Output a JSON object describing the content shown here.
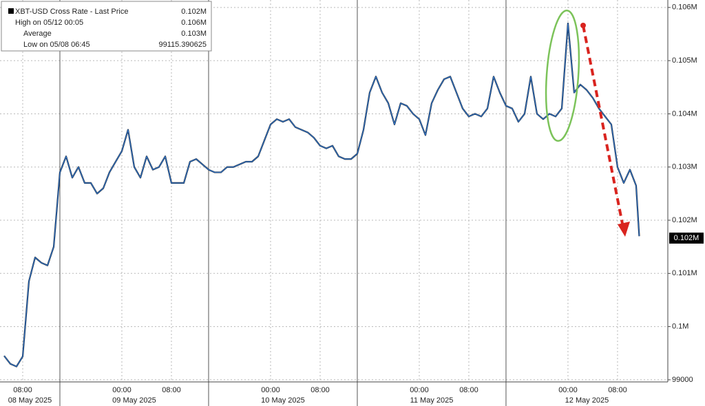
{
  "chart_data": {
    "type": "line",
    "legend": {
      "title": "XBT-USD Cross Rate - Last Price",
      "last": "0.102M",
      "stats": [
        {
          "label": "High on 05/12 00:05",
          "value": "0.106M"
        },
        {
          "label": "Average",
          "value": "0.103M"
        },
        {
          "label": "Low on 05/08 06:45",
          "value": "99115.390625"
        }
      ]
    },
    "x": [
      "2025-05-08T05:00",
      "2025-05-08T06:00",
      "2025-05-08T07:00",
      "2025-05-08T08:00",
      "2025-05-08T09:00",
      "2025-05-08T10:00",
      "2025-05-08T11:00",
      "2025-05-08T12:00",
      "2025-05-08T13:00",
      "2025-05-08T14:00",
      "2025-05-08T15:00",
      "2025-05-08T16:00",
      "2025-05-08T17:00",
      "2025-05-08T18:00",
      "2025-05-08T19:00",
      "2025-05-08T20:00",
      "2025-05-08T21:00",
      "2025-05-08T22:00",
      "2025-05-08T23:00",
      "2025-05-09T00:00",
      "2025-05-09T01:00",
      "2025-05-09T02:00",
      "2025-05-09T03:00",
      "2025-05-09T04:00",
      "2025-05-09T05:00",
      "2025-05-09T06:00",
      "2025-05-09T07:00",
      "2025-05-09T08:00",
      "2025-05-09T09:00",
      "2025-05-09T10:00",
      "2025-05-09T11:00",
      "2025-05-09T12:00",
      "2025-05-09T13:00",
      "2025-05-09T14:00",
      "2025-05-09T15:00",
      "2025-05-09T16:00",
      "2025-05-09T17:00",
      "2025-05-09T18:00",
      "2025-05-09T19:00",
      "2025-05-09T20:00",
      "2025-05-09T21:00",
      "2025-05-09T22:00",
      "2025-05-09T23:00",
      "2025-05-10T00:00",
      "2025-05-10T01:00",
      "2025-05-10T02:00",
      "2025-05-10T03:00",
      "2025-05-10T04:00",
      "2025-05-10T05:00",
      "2025-05-10T06:00",
      "2025-05-10T07:00",
      "2025-05-10T08:00",
      "2025-05-10T09:00",
      "2025-05-10T10:00",
      "2025-05-10T11:00",
      "2025-05-10T12:00",
      "2025-05-10T13:00",
      "2025-05-10T14:00",
      "2025-05-10T15:00",
      "2025-05-10T16:00",
      "2025-05-10T17:00",
      "2025-05-10T18:00",
      "2025-05-10T19:00",
      "2025-05-10T20:00",
      "2025-05-10T21:00",
      "2025-05-10T22:00",
      "2025-05-10T23:00",
      "2025-05-11T00:00",
      "2025-05-11T01:00",
      "2025-05-11T02:00",
      "2025-05-11T03:00",
      "2025-05-11T04:00",
      "2025-05-11T05:00",
      "2025-05-11T06:00",
      "2025-05-11T07:00",
      "2025-05-11T08:00",
      "2025-05-11T09:00",
      "2025-05-11T10:00",
      "2025-05-11T11:00",
      "2025-05-11T12:00",
      "2025-05-11T13:00",
      "2025-05-11T14:00",
      "2025-05-11T15:00",
      "2025-05-11T16:00",
      "2025-05-11T17:00",
      "2025-05-11T18:00",
      "2025-05-11T19:00",
      "2025-05-11T20:00",
      "2025-05-11T21:00",
      "2025-05-11T22:00",
      "2025-05-11T23:00",
      "2025-05-12T00:00",
      "2025-05-12T01:00",
      "2025-05-12T02:00",
      "2025-05-12T03:00",
      "2025-05-12T04:00",
      "2025-05-12T05:00",
      "2025-05-12T06:00",
      "2025-05-12T07:00",
      "2025-05-12T08:00",
      "2025-05-12T09:00",
      "2025-05-12T10:00",
      "2025-05-12T11:00",
      "2025-05-12T11:30"
    ],
    "series": [
      {
        "name": "XBT-USD Cross Rate - Last Price",
        "color": "#2f6fc0",
        "values": [
          99450,
          99300,
          99250,
          99440,
          100850,
          101300,
          101200,
          101150,
          101500,
          102900,
          103200,
          102800,
          103000,
          102700,
          102700,
          102500,
          102600,
          102900,
          103100,
          103300,
          103700,
          103000,
          102800,
          103200,
          102950,
          103000,
          103200,
          102700,
          102700,
          102700,
          103100,
          103150,
          103050,
          102950,
          102900,
          102900,
          103000,
          103000,
          103050,
          103100,
          103100,
          103200,
          103500,
          103800,
          103900,
          103850,
          103900,
          103750,
          103700,
          103650,
          103550,
          103400,
          103350,
          103400,
          103200,
          103150,
          103150,
          103250,
          103700,
          104400,
          104700,
          104400,
          104200,
          103800,
          104200,
          104150,
          104000,
          103900,
          103600,
          104200,
          104450,
          104650,
          104700,
          104400,
          104100,
          103950,
          104000,
          103950,
          104100,
          104700,
          104400,
          104150,
          104100,
          103850,
          104000,
          104700,
          104000,
          103900,
          104000,
          103950,
          104100,
          105700,
          104400,
          104550,
          104450,
          104300,
          104100,
          103950,
          103800,
          103000,
          102700,
          102950,
          102650,
          101700
        ]
      }
    ],
    "xlim": [
      "2025-05-08T04:20",
      "2025-05-12T16:07"
    ],
    "xticks": [
      {
        "value": "2025-05-08T08:00",
        "label": "08:00"
      },
      {
        "value": "2025-05-09T00:00",
        "label": "00:00"
      },
      {
        "value": "2025-05-09T08:00",
        "label": "08:00"
      },
      {
        "value": "2025-05-10T00:00",
        "label": "00:00"
      },
      {
        "value": "2025-05-10T08:00",
        "label": "08:00"
      },
      {
        "value": "2025-05-11T00:00",
        "label": "00:00"
      },
      {
        "value": "2025-05-11T08:00",
        "label": "08:00"
      },
      {
        "value": "2025-05-12T00:00",
        "label": "00:00"
      },
      {
        "value": "2025-05-12T08:00",
        "label": "08:00"
      }
    ],
    "date_breaks": [
      "2025-05-08T14:00",
      "2025-05-09T14:00",
      "2025-05-10T14:00",
      "2025-05-11T14:00"
    ],
    "date_labels": [
      "08 May 2025",
      "09 May 2025",
      "10 May 2025",
      "11 May 2025",
      "12 May 2025"
    ],
    "ylim": [
      98960,
      106140
    ],
    "yticks": [
      {
        "value": 99000,
        "label": "99000"
      },
      {
        "value": 100000,
        "label": "0.1M"
      },
      {
        "value": 101000,
        "label": "0.101M"
      },
      {
        "value": 102000,
        "label": "0.102M"
      },
      {
        "value": 103000,
        "label": "0.103M"
      },
      {
        "value": 104000,
        "label": "0.104M"
      },
      {
        "value": 105000,
        "label": "0.105M"
      },
      {
        "value": 106000,
        "label": "0.106M"
      }
    ],
    "grid": true
  }
}
